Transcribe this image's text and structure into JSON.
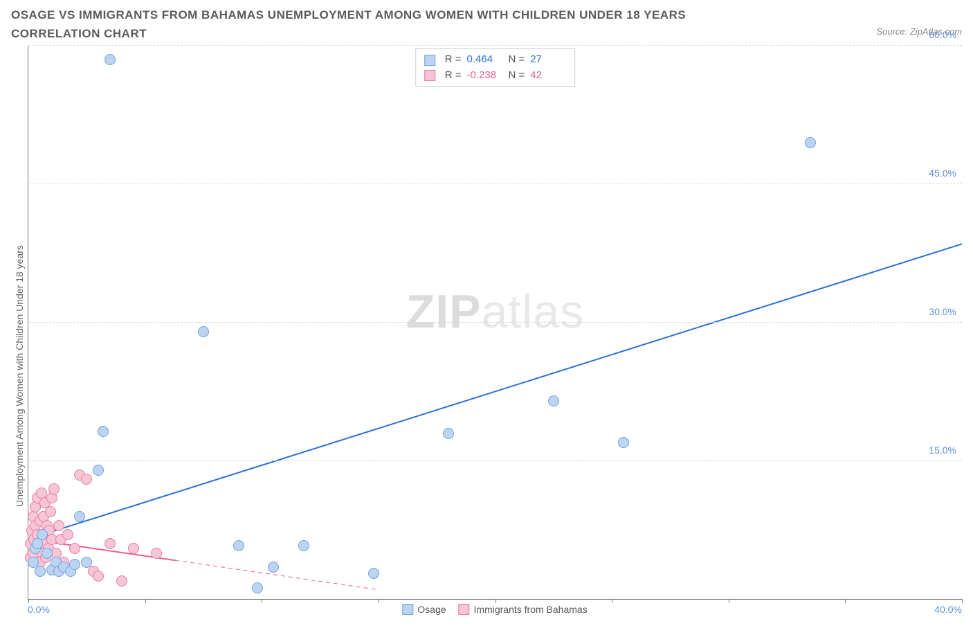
{
  "title": "OSAGE VS IMMIGRANTS FROM BAHAMAS UNEMPLOYMENT AMONG WOMEN WITH CHILDREN UNDER 18 YEARS CORRELATION CHART",
  "source_label": "Source: ZipAtlas.com",
  "watermark_a": "ZIP",
  "watermark_b": "atlas",
  "ylabel": "Unemployment Among Women with Children Under 18 years",
  "chart": {
    "type": "scatter-with-trend",
    "xlim": [
      0,
      40
    ],
    "ylim": [
      0,
      60
    ],
    "yticks": [
      15,
      30,
      45,
      60
    ],
    "ytick_labels": [
      "15.0%",
      "30.0%",
      "45.0%",
      "60.0%"
    ],
    "xtick_marks": [
      0,
      5,
      10,
      15,
      20,
      25,
      30,
      35,
      40
    ],
    "x_left_label": "0.0%",
    "x_right_label": "40.0%",
    "background_color": "#ffffff",
    "grid_color": "#d8d8d8",
    "axis_color": "#777777",
    "tick_label_color": "#5b8fd6"
  },
  "series": {
    "osage": {
      "label": "Osage",
      "color_fill": "#bcd4f0",
      "color_stroke": "#6fa3dd",
      "marker_radius": 8,
      "stats": {
        "R": "0.464",
        "N": "27",
        "value_color": "#2a6fd6"
      },
      "trend": {
        "x1": 0,
        "y1": 6.5,
        "x2": 40,
        "y2": 38.5,
        "color": "#2a6fd6",
        "dashed_from_x": 40,
        "width": 2
      },
      "points": [
        {
          "x": 0.2,
          "y": 4.0
        },
        {
          "x": 0.3,
          "y": 5.5
        },
        {
          "x": 0.4,
          "y": 6.0
        },
        {
          "x": 0.5,
          "y": 3.0
        },
        {
          "x": 0.6,
          "y": 7.0
        },
        {
          "x": 0.8,
          "y": 5.0
        },
        {
          "x": 1.0,
          "y": 3.2
        },
        {
          "x": 1.2,
          "y": 4.0
        },
        {
          "x": 1.3,
          "y": 3.0
        },
        {
          "x": 1.5,
          "y": 3.5
        },
        {
          "x": 1.8,
          "y": 3.0
        },
        {
          "x": 2.0,
          "y": 3.8
        },
        {
          "x": 2.2,
          "y": 9.0
        },
        {
          "x": 2.5,
          "y": 4.0
        },
        {
          "x": 3.0,
          "y": 14.0
        },
        {
          "x": 3.2,
          "y": 18.2
        },
        {
          "x": 3.5,
          "y": 58.5
        },
        {
          "x": 7.5,
          "y": 29.0
        },
        {
          "x": 9.0,
          "y": 5.8
        },
        {
          "x": 9.8,
          "y": 1.2
        },
        {
          "x": 10.5,
          "y": 3.5
        },
        {
          "x": 11.8,
          "y": 5.8
        },
        {
          "x": 14.8,
          "y": 2.8
        },
        {
          "x": 18.0,
          "y": 18.0
        },
        {
          "x": 22.5,
          "y": 21.5
        },
        {
          "x": 25.5,
          "y": 17.0
        },
        {
          "x": 33.5,
          "y": 49.5
        }
      ]
    },
    "bahamas": {
      "label": "Immigrants from Bahamas",
      "color_fill": "#f6c6d7",
      "color_stroke": "#e87ba4",
      "marker_radius": 8,
      "stats": {
        "R": "-0.238",
        "N": "42",
        "value_color": "#e75f91"
      },
      "trend": {
        "x1": 0,
        "y1": 6.5,
        "x2": 15,
        "y2": 1.0,
        "dash_to_x": 6.3,
        "color": "#e75f91",
        "width": 2
      },
      "points": [
        {
          "x": 0.1,
          "y": 4.5
        },
        {
          "x": 0.1,
          "y": 6.0
        },
        {
          "x": 0.15,
          "y": 7.5
        },
        {
          "x": 0.2,
          "y": 5.0
        },
        {
          "x": 0.2,
          "y": 9.0
        },
        {
          "x": 0.25,
          "y": 6.5
        },
        {
          "x": 0.3,
          "y": 8.0
        },
        {
          "x": 0.3,
          "y": 10.0
        },
        {
          "x": 0.35,
          "y": 5.5
        },
        {
          "x": 0.4,
          "y": 7.0
        },
        {
          "x": 0.4,
          "y": 11.0
        },
        {
          "x": 0.45,
          "y": 6.0
        },
        {
          "x": 0.5,
          "y": 4.0
        },
        {
          "x": 0.5,
          "y": 8.5
        },
        {
          "x": 0.55,
          "y": 11.5
        },
        {
          "x": 0.6,
          "y": 5.0
        },
        {
          "x": 0.6,
          "y": 7.0
        },
        {
          "x": 0.65,
          "y": 9.0
        },
        {
          "x": 0.7,
          "y": 6.0
        },
        {
          "x": 0.7,
          "y": 10.5
        },
        {
          "x": 0.75,
          "y": 4.5
        },
        {
          "x": 0.8,
          "y": 8.0
        },
        {
          "x": 0.85,
          "y": 5.5
        },
        {
          "x": 0.9,
          "y": 7.5
        },
        {
          "x": 0.95,
          "y": 9.5
        },
        {
          "x": 1.0,
          "y": 6.5
        },
        {
          "x": 1.0,
          "y": 11.0
        },
        {
          "x": 1.1,
          "y": 12.0
        },
        {
          "x": 1.2,
          "y": 5.0
        },
        {
          "x": 1.3,
          "y": 8.0
        },
        {
          "x": 1.4,
          "y": 6.5
        },
        {
          "x": 1.5,
          "y": 4.0
        },
        {
          "x": 1.7,
          "y": 7.0
        },
        {
          "x": 2.0,
          "y": 5.5
        },
        {
          "x": 2.2,
          "y": 13.5
        },
        {
          "x": 2.5,
          "y": 13.0
        },
        {
          "x": 2.8,
          "y": 3.0
        },
        {
          "x": 3.0,
          "y": 2.5
        },
        {
          "x": 3.5,
          "y": 6.0
        },
        {
          "x": 4.5,
          "y": 5.5
        },
        {
          "x": 4.0,
          "y": 2.0
        },
        {
          "x": 5.5,
          "y": 5.0
        }
      ]
    }
  },
  "stats_legend": {
    "r_label": "R =",
    "n_label": "N ="
  }
}
